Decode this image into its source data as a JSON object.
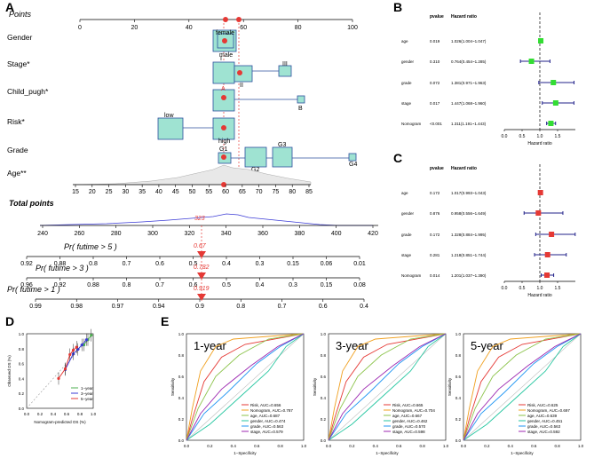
{
  "panel_labels": {
    "a": "A",
    "b": "B",
    "c": "C",
    "d": "D",
    "e": "E"
  },
  "chart_data": [
    {
      "panel": "A",
      "type": "nomogram",
      "points_label": "Points",
      "points_ticks": [
        "0",
        "20",
        "40",
        "60",
        "80",
        "100"
      ],
      "rows": [
        {
          "label": "Gender",
          "levels": [
            "female",
            "male"
          ]
        },
        {
          "label": "Stage*",
          "levels": [
            "I",
            "II",
            "III"
          ]
        },
        {
          "label": "Child_pugh*",
          "levels": [
            "A",
            "B"
          ]
        },
        {
          "label": "Risk*",
          "levels": [
            "low",
            "high"
          ]
        },
        {
          "label": "Grade",
          "levels": [
            "G1",
            "G2",
            "G3",
            "G4"
          ]
        },
        {
          "label": "Age**",
          "ticks": [
            "15",
            "20",
            "25",
            "30",
            "35",
            "40",
            "45",
            "50",
            "55",
            "60",
            "65",
            "70",
            "75",
            "80",
            "85"
          ]
        }
      ],
      "total_points_label": "Total points",
      "total_ticks": [
        "240",
        "260",
        "280",
        "300",
        "320",
        "340",
        "360",
        "380",
        "400",
        "420"
      ],
      "total_value": "323",
      "predictions": [
        {
          "label": "Pr( futime > 5 )",
          "value": "0.67",
          "ticks": [
            "0.92",
            "0.88",
            "0.8",
            "0.7",
            "0.6",
            "0.5",
            "0.4",
            "0.3",
            "0.15",
            "0.06",
            "0.01"
          ]
        },
        {
          "label": "Pr( futime > 3 )",
          "value": "0.782",
          "ticks": [
            "0.96",
            "0.92",
            "0.88",
            "0.8",
            "0.7",
            "0.6",
            "0.5",
            "0.4",
            "0.3",
            "0.15",
            "0.08"
          ]
        },
        {
          "label": "Pr( futime > 1 )",
          "value": "0.919",
          "ticks": [
            "0.99",
            "0.98",
            "0.97",
            "0.94",
            "0.9",
            "0.8",
            "0.7",
            "0.6",
            "0.4"
          ]
        }
      ]
    },
    {
      "panel": "B",
      "type": "forest",
      "col_pvalue": "pvalue",
      "col_hr": "Hazard ratio",
      "xlabel": "Hazard ratio",
      "xlim": [
        0.0,
        2.0
      ],
      "xticks": [
        "0.0",
        "0.5",
        "1.0",
        "1.5"
      ],
      "ref_line": 1.0,
      "rows": [
        {
          "name": "age",
          "pvalue": "0.019",
          "hr_text": "1.026(1.004~1.047)",
          "hr": 1.026,
          "lo": 1.004,
          "hi": 1.047
        },
        {
          "name": "gender",
          "pvalue": "0.310",
          "hr_text": "0.764(0.454~1.285)",
          "hr": 0.764,
          "lo": 0.454,
          "hi": 1.285
        },
        {
          "name": "grade",
          "pvalue": "0.072",
          "hr_text": "1.381(0.971~1.963)",
          "hr": 1.381,
          "lo": 0.971,
          "hi": 1.963
        },
        {
          "name": "stage",
          "pvalue": "0.017",
          "hr_text": "1.447(1.068~1.960)",
          "hr": 1.447,
          "lo": 1.068,
          "hi": 1.96
        },
        {
          "name": "Nomogram",
          "pvalue": "<0.001",
          "hr_text": "1.311(1.191~1.443)",
          "hr": 1.311,
          "lo": 1.191,
          "hi": 1.443
        }
      ]
    },
    {
      "panel": "C",
      "type": "forest",
      "col_pvalue": "pvalue",
      "col_hr": "Hazard ratio",
      "xlabel": "Hazard ratio",
      "xlim": [
        0.0,
        2.0
      ],
      "xticks": [
        "0.0",
        "0.5",
        "1.0",
        "1.5"
      ],
      "ref_line": 1.0,
      "rows": [
        {
          "name": "age",
          "pvalue": "0.172",
          "hr_text": "1.017(0.993~1.043)",
          "hr": 1.017,
          "lo": 0.993,
          "hi": 1.043
        },
        {
          "name": "gender",
          "pvalue": "0.876",
          "hr_text": "0.958(0.556~1.649)",
          "hr": 0.958,
          "lo": 0.556,
          "hi": 1.649
        },
        {
          "name": "grade",
          "pvalue": "0.172",
          "hr_text": "1.328(0.884~1.995)",
          "hr": 1.328,
          "lo": 0.884,
          "hi": 1.995
        },
        {
          "name": "stage",
          "pvalue": "0.281",
          "hr_text": "1.218(0.851~1.744)",
          "hr": 1.218,
          "lo": 0.851,
          "hi": 1.744
        },
        {
          "name": "Nomogram",
          "pvalue": "0.014",
          "hr_text": "1.201(1.037~1.390)",
          "hr": 1.201,
          "lo": 1.037,
          "hi": 1.39
        }
      ]
    },
    {
      "panel": "D",
      "type": "line",
      "xlabel": "Nomogram-predicted OS (%)",
      "ylabel": "Observed OS (%)",
      "xlim": [
        0.0,
        1.0
      ],
      "ylim": [
        0.0,
        1.0
      ],
      "ticks": [
        "0.0",
        "0.2",
        "0.4",
        "0.6",
        "0.8",
        "1.0"
      ],
      "series": [
        {
          "name": "1−year",
          "color": "#4caf50",
          "x": [
            0.86,
            0.92,
            0.97
          ],
          "y": [
            0.85,
            0.92,
            0.98
          ]
        },
        {
          "name": "3−year",
          "color": "#3b3bd6",
          "x": [
            0.58,
            0.7,
            0.77,
            0.83,
            0.9
          ],
          "y": [
            0.52,
            0.73,
            0.79,
            0.85,
            0.92
          ]
        },
        {
          "name": "5−year",
          "color": "#e53935",
          "x": [
            0.48,
            0.58,
            0.65,
            0.7,
            0.75
          ],
          "y": [
            0.4,
            0.53,
            0.72,
            0.78,
            0.82
          ]
        }
      ]
    },
    {
      "panel": "E",
      "type": "line",
      "subtype": "roc",
      "xlabel": "1−Specificity",
      "ylabel": "Sensitivity",
      "ticks": [
        "0.0",
        "0.2",
        "0.4",
        "0.6",
        "0.8",
        "1.0"
      ],
      "charts": [
        {
          "title": "1-year",
          "legend": [
            {
              "label": "Risk, AUC=0.656",
              "color": "#e53935"
            },
            {
              "label": "Nomogram, AUC=0.787",
              "color": "#f0a020"
            },
            {
              "label": "age, AUC=0.687",
              "color": "#8bc34a"
            },
            {
              "label": "gender, AUC=0.474",
              "color": "#26c6a0"
            },
            {
              "label": "grade, AUC=0.563",
              "color": "#2196f3"
            },
            {
              "label": "stage, AUC=0.579",
              "color": "#9c27b0"
            }
          ]
        },
        {
          "title": "3-year",
          "legend": [
            {
              "label": "Risk, AUC=0.665",
              "color": "#e53935"
            },
            {
              "label": "Nomogram, AUC=0.704",
              "color": "#f0a020"
            },
            {
              "label": "age, AUC=0.667",
              "color": "#8bc34a"
            },
            {
              "label": "gender, AUC=0.462",
              "color": "#26c6a0"
            },
            {
              "label": "grade, AUC=0.570",
              "color": "#2196f3"
            },
            {
              "label": "stage, AUC=0.598",
              "color": "#9c27b0"
            }
          ]
        },
        {
          "title": "5-year",
          "legend": [
            {
              "label": "Risk, AUC=0.625",
              "color": "#e53935"
            },
            {
              "label": "Nomogram, AUC=0.697",
              "color": "#f0a020"
            },
            {
              "label": "age, AUC=0.639",
              "color": "#8bc34a"
            },
            {
              "label": "gender, AUC=0.451",
              "color": "#26c6a0"
            },
            {
              "label": "grade, AUC=0.563",
              "color": "#2196f3"
            },
            {
              "label": "stage, AUC=0.592",
              "color": "#9c27b0"
            }
          ]
        }
      ]
    }
  ]
}
